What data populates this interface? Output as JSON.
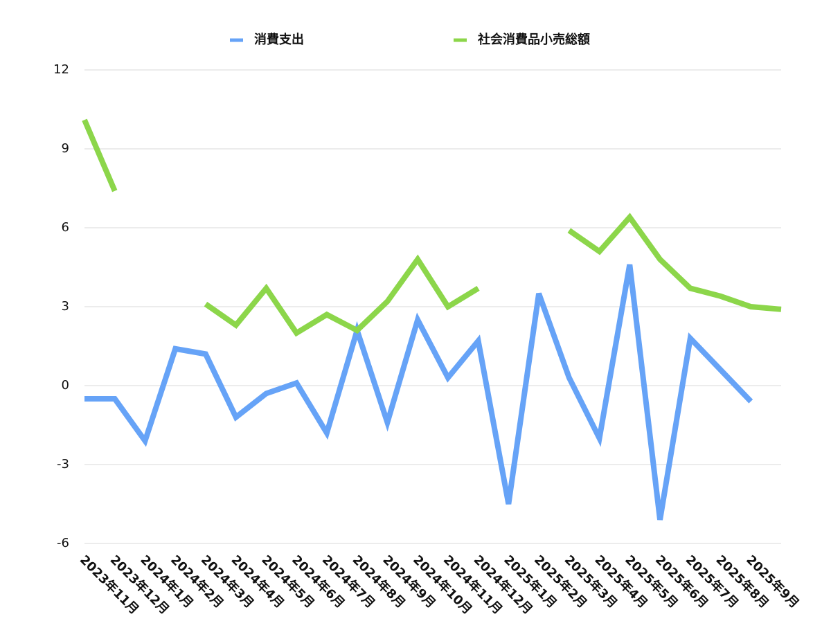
{
  "chart_data": {
    "type": "line",
    "categories": [
      "2023年11月",
      "2023年12月",
      "2024年1月",
      "2024年2月",
      "2024年3月",
      "2024年4月",
      "2024年5月",
      "2024年6月",
      "2024年7月",
      "2024年8月",
      "2024年9月",
      "2024年10月",
      "2024年11月",
      "2024年12月",
      "2025年1月",
      "2025年2月",
      "2025年3月",
      "2025年4月",
      "2025年5月",
      "2025年6月",
      "2025年7月",
      "2025年8月",
      "2025年9月",
      null
    ],
    "series": [
      {
        "name": "消費支出",
        "color": "#66a3f7",
        "values": [
          -0.5,
          -0.5,
          -2.1,
          1.4,
          1.2,
          -1.2,
          -0.3,
          0.1,
          -1.8,
          2.1,
          -1.4,
          2.5,
          0.3,
          1.7,
          -4.5,
          3.5,
          0.3,
          -2.0,
          4.6,
          -5.1,
          1.8,
          0.6,
          -0.6,
          null
        ]
      },
      {
        "name": "社会消費品小売総額",
        "color": "#8cd64a",
        "values": [
          10.1,
          7.4,
          null,
          null,
          3.1,
          2.3,
          3.7,
          2.0,
          2.7,
          2.1,
          3.2,
          4.8,
          3.0,
          3.7,
          null,
          null,
          5.9,
          5.1,
          6.4,
          4.8,
          3.7,
          3.4,
          3.0,
          2.9
        ]
      }
    ],
    "ylim": [
      -6,
      12
    ],
    "yticks": [
      -6,
      -3,
      0,
      3,
      6,
      9,
      12
    ],
    "grid": true,
    "legend": "top"
  }
}
